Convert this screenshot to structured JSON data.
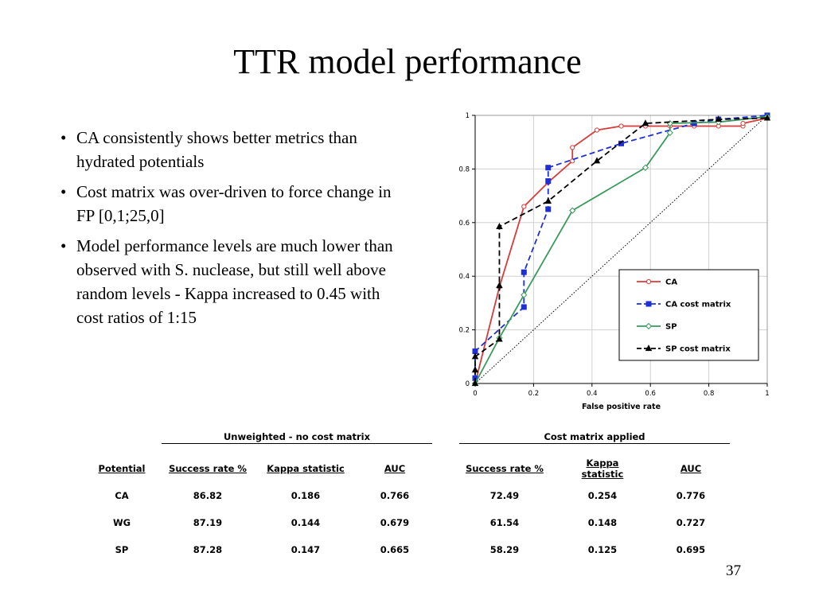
{
  "slide": {
    "title": "TTR model performance",
    "page_number": "37"
  },
  "bullets": [
    "CA consistently shows better metrics than hydrated potentials",
    "Cost matrix was over-driven to force change in FP [0,1;25,0]",
    "Model performance levels are much lower than observed with S. nuclease, but still well above random levels - Kappa increased to 0.45 with cost ratios of 1:15"
  ],
  "chart_data": {
    "type": "line",
    "title": "",
    "xlabel": "False positive rate",
    "ylabel": "",
    "xlim": [
      0,
      1
    ],
    "ylim": [
      0,
      1
    ],
    "xticks": [
      0,
      0.2,
      0.4,
      0.6,
      0.8,
      1
    ],
    "yticks": [
      0,
      0.2,
      0.4,
      0.6,
      0.8,
      1
    ],
    "xtick_labels": [
      "0",
      "0.2",
      "0.4",
      "0.6",
      "0.8",
      "1"
    ],
    "ytick_labels": [
      "0",
      "0.2",
      "0.4",
      "0.6",
      "0.8",
      "1"
    ],
    "grid": true,
    "legend_position": "bottom-right",
    "reference_line": {
      "from": [
        0,
        0
      ],
      "to": [
        1,
        1
      ],
      "style": "dotted"
    },
    "series": [
      {
        "name": "CA",
        "color": "#d93a3a",
        "marker": "circle-open",
        "dash": "solid",
        "points": [
          [
            0,
            0
          ],
          [
            0.083,
            0.36
          ],
          [
            0.167,
            0.66
          ],
          [
            0.25,
            0.75
          ],
          [
            0.333,
            0.83
          ],
          [
            0.333,
            0.88
          ],
          [
            0.417,
            0.945
          ],
          [
            0.5,
            0.96
          ],
          [
            0.583,
            0.96
          ],
          [
            0.667,
            0.96
          ],
          [
            0.75,
            0.96
          ],
          [
            0.833,
            0.96
          ],
          [
            0.917,
            0.96
          ],
          [
            0.917,
            0.97
          ],
          [
            1,
            0.99
          ]
        ]
      },
      {
        "name": "CA cost matrix",
        "color": "#1e2fd6",
        "marker": "square-filled",
        "dash": "dashed",
        "points": [
          [
            0,
            0.02
          ],
          [
            0,
            0.12
          ],
          [
            0.167,
            0.285
          ],
          [
            0.167,
            0.415
          ],
          [
            0.25,
            0.65
          ],
          [
            0.25,
            0.755
          ],
          [
            0.25,
            0.805
          ],
          [
            0.5,
            0.895
          ],
          [
            0.75,
            0.97
          ],
          [
            0.833,
            0.985
          ],
          [
            1,
            1
          ]
        ]
      },
      {
        "name": "SP",
        "color": "#3a9a5c",
        "marker": "diamond-open",
        "dash": "solid",
        "points": [
          [
            0,
            0
          ],
          [
            0.083,
            0.17
          ],
          [
            0.167,
            0.33
          ],
          [
            0.333,
            0.645
          ],
          [
            0.583,
            0.805
          ],
          [
            0.667,
            0.935
          ],
          [
            0.667,
            0.97
          ],
          [
            0.833,
            0.975
          ],
          [
            1,
            0.995
          ]
        ]
      },
      {
        "name": "SP cost matrix",
        "color": "#000000",
        "marker": "triangle-filled",
        "dash": "dashed",
        "points": [
          [
            0,
            0
          ],
          [
            0,
            0.05
          ],
          [
            0,
            0.1
          ],
          [
            0.083,
            0.165
          ],
          [
            0.083,
            0.365
          ],
          [
            0.083,
            0.585
          ],
          [
            0.25,
            0.68
          ],
          [
            0.417,
            0.83
          ],
          [
            0.583,
            0.97
          ],
          [
            0.833,
            0.985
          ],
          [
            1,
            0.99
          ]
        ]
      }
    ]
  },
  "results_table": {
    "group_headers": [
      "Unweighted - no cost matrix",
      "Cost matrix applied"
    ],
    "columns": [
      "Potential",
      "Success rate %",
      "Kappa statistic",
      "AUC",
      "Success rate %",
      "Kappa statistic",
      "AUC"
    ],
    "rows": [
      [
        "CA",
        "86.82",
        "0.186",
        "0.766",
        "72.49",
        "0.254",
        "0.776"
      ],
      [
        "WG",
        "87.19",
        "0.144",
        "0.679",
        "61.54",
        "0.148",
        "0.727"
      ],
      [
        "SP",
        "87.28",
        "0.147",
        "0.665",
        "58.29",
        "0.125",
        "0.695"
      ]
    ]
  }
}
